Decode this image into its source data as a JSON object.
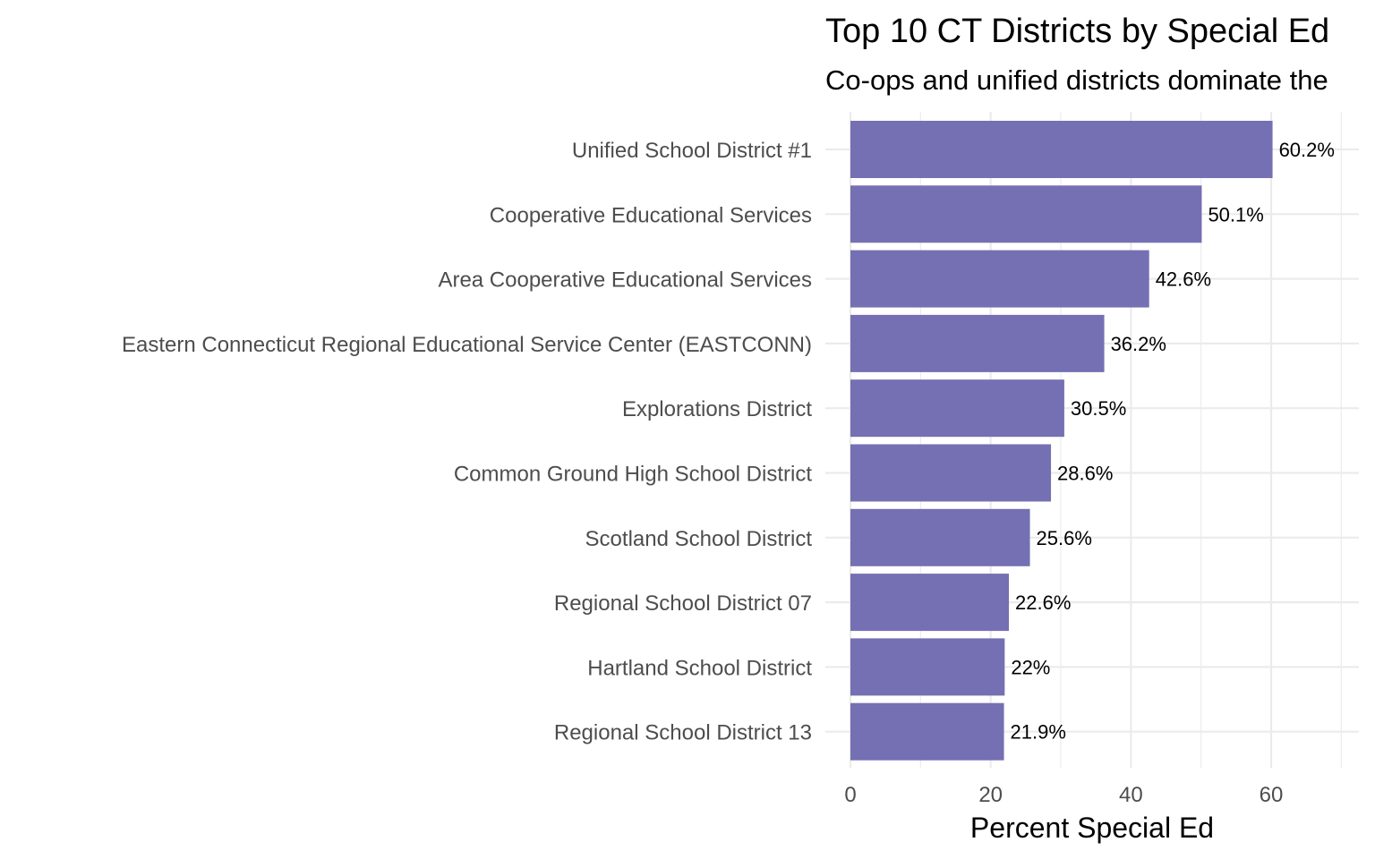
{
  "chart_data": {
    "type": "bar",
    "orientation": "horizontal",
    "title": "Top 10 CT Districts by Special Ed",
    "subtitle": "Co-ops and unified districts dominate the",
    "xlabel": "Percent Special Ed",
    "ylabel": "",
    "xlim": [
      0,
      72.6
    ],
    "xticks": [
      0,
      20,
      40,
      60
    ],
    "grid": true,
    "bar_color": "#7570b3",
    "categories": [
      "Unified School District #1",
      "Cooperative Educational Services",
      "Area Cooperative Educational Services",
      "Eastern Connecticut Regional Educational Service Center (EASTCONN)",
      "Explorations District",
      "Common Ground High School District",
      "Scotland School District",
      "Regional School District 07",
      "Hartland School District",
      "Regional School District 13"
    ],
    "values": [
      60.2,
      50.1,
      42.6,
      36.2,
      30.5,
      28.6,
      25.6,
      22.6,
      22,
      21.9
    ],
    "data_labels": [
      "60.2%",
      "50.1%",
      "42.6%",
      "36.2%",
      "30.5%",
      "28.6%",
      "25.6%",
      "22.6%",
      "22%",
      "21.9%"
    ]
  }
}
